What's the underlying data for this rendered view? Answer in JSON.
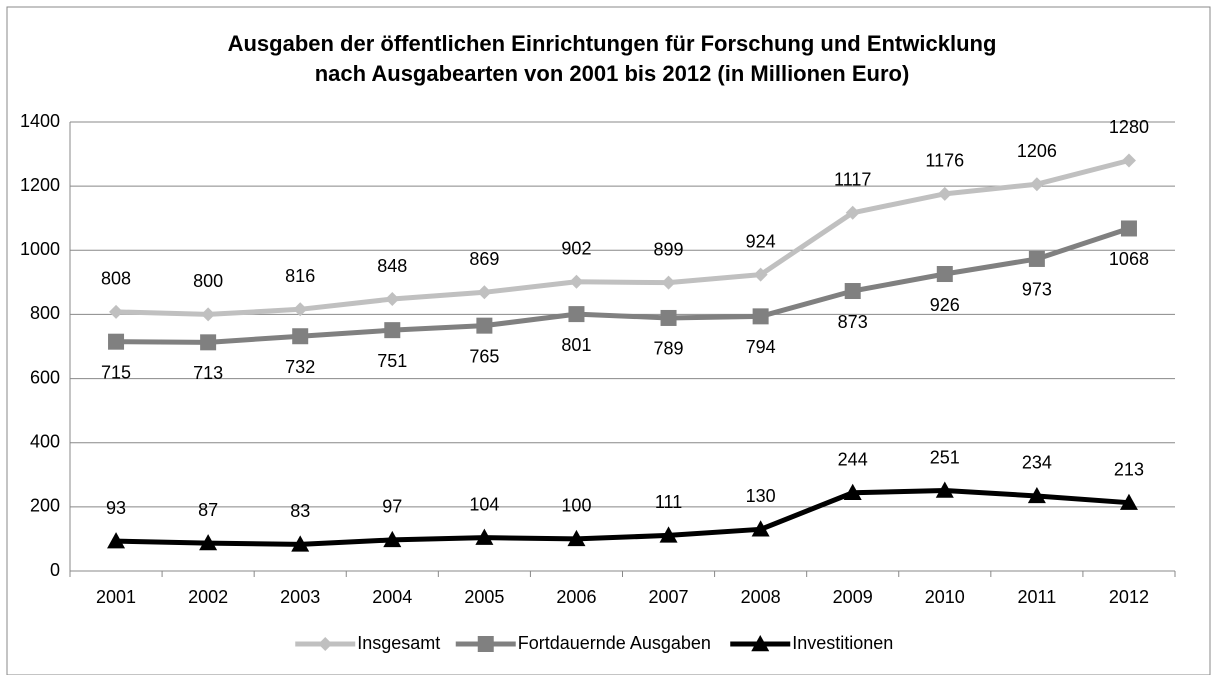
{
  "chart_data": {
    "type": "line",
    "title": [
      "Ausgaben der öffentlichen Einrichtungen für Forschung und Entwicklung",
      "nach Ausgabearten von 2001 bis 2012 (in Millionen Euro)"
    ],
    "categories": [
      "2001",
      "2002",
      "2003",
      "2004",
      "2005",
      "2006",
      "2007",
      "2008",
      "2009",
      "2010",
      "2011",
      "2012"
    ],
    "series": [
      {
        "name": "Insgesamt",
        "color": "#c0c0c0",
        "marker": "diamond",
        "label_position": "above",
        "values": [
          808,
          800,
          816,
          848,
          869,
          902,
          899,
          924,
          1117,
          1176,
          1206,
          1280
        ]
      },
      {
        "name": "Fortdauernde Ausgaben",
        "color": "#808080",
        "marker": "square",
        "label_position": "below",
        "values": [
          715,
          713,
          732,
          751,
          765,
          801,
          789,
          794,
          873,
          926,
          973,
          1068
        ]
      },
      {
        "name": "Investitionen",
        "color": "#000000",
        "marker": "triangle",
        "label_position": "above",
        "values": [
          93,
          87,
          83,
          97,
          104,
          100,
          111,
          130,
          244,
          251,
          234,
          213
        ]
      }
    ],
    "ylim": [
      0,
      1400
    ],
    "yticks": [
      0,
      200,
      400,
      600,
      800,
      1000,
      1200,
      1400
    ],
    "grid": true,
    "legend": "bottom"
  }
}
